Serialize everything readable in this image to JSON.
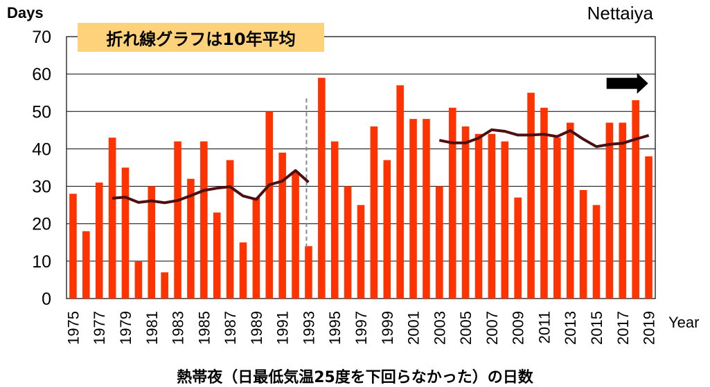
{
  "chart_data": {
    "type": "bar",
    "title": "Nettaiya",
    "ylabel": "Days",
    "xlabel": "Year",
    "note": "折れ線グラフは10年平均",
    "caption": "熱帯夜（日最低気温25度を下回らなかった）の日数",
    "ylim": [
      0,
      70
    ],
    "yticks": [
      0,
      10,
      20,
      30,
      40,
      50,
      60,
      70
    ],
    "grid": true,
    "colors": {
      "bar": "#ff3300",
      "line": "#4d0f0f",
      "arrow": "#000000",
      "divider": "#888888",
      "note_bg": "#fdd27a"
    },
    "categories": [
      1975,
      1976,
      1977,
      1978,
      1979,
      1980,
      1981,
      1982,
      1983,
      1984,
      1985,
      1986,
      1987,
      1988,
      1989,
      1990,
      1991,
      1992,
      1993,
      1994,
      1995,
      1996,
      1997,
      1998,
      1999,
      2000,
      2001,
      2002,
      2003,
      2004,
      2005,
      2006,
      2007,
      2008,
      2009,
      2010,
      2011,
      2012,
      2013,
      2014,
      2015,
      2016,
      2017,
      2018,
      2019
    ],
    "xtick_labels": [
      "1975",
      "1977",
      "1979",
      "1981",
      "1983",
      "1985",
      "1987",
      "1989",
      "1991",
      "1993",
      "1995",
      "1997",
      "1999",
      "2001",
      "2003",
      "2005",
      "2007",
      "2009",
      "2011",
      "2013",
      "2015",
      "2017",
      "2019"
    ],
    "values": [
      28,
      18,
      31,
      43,
      35,
      10,
      30,
      7,
      42,
      32,
      42,
      23,
      37,
      15,
      27,
      50,
      39,
      34,
      14,
      59,
      42,
      30,
      25,
      46,
      37,
      57,
      48,
      48,
      30,
      51,
      46,
      44,
      44,
      42,
      27,
      55,
      51,
      43,
      47,
      29,
      25,
      47,
      47,
      53,
      38
    ],
    "line_series": [
      {
        "x": [
          1978,
          1979,
          1980,
          1981,
          1982,
          1983,
          1984,
          1985,
          1986,
          1987,
          1988,
          1989,
          1990,
          1991,
          1992,
          1993
        ],
        "y": [
          26.8,
          27.1,
          25.7,
          26.1,
          25.6,
          26.2,
          27.5,
          28.9,
          29.5,
          29.9,
          27.4,
          26.5,
          30.4,
          31.4,
          34.2,
          31.1
        ]
      },
      {
        "x": [
          2003,
          2004,
          2005,
          2006,
          2007,
          2008,
          2009,
          2010,
          2011,
          2012,
          2013,
          2014,
          2015,
          2016,
          2017,
          2018,
          2019
        ],
        "y": [
          42.3,
          41.6,
          41.6,
          42.9,
          45.1,
          44.7,
          43.7,
          43.7,
          43.9,
          43.3,
          44.9,
          42.6,
          40.6,
          41.2,
          41.5,
          42.6,
          43.6
        ]
      }
    ],
    "divider_year": 1993,
    "arrow_year": 2018
  }
}
